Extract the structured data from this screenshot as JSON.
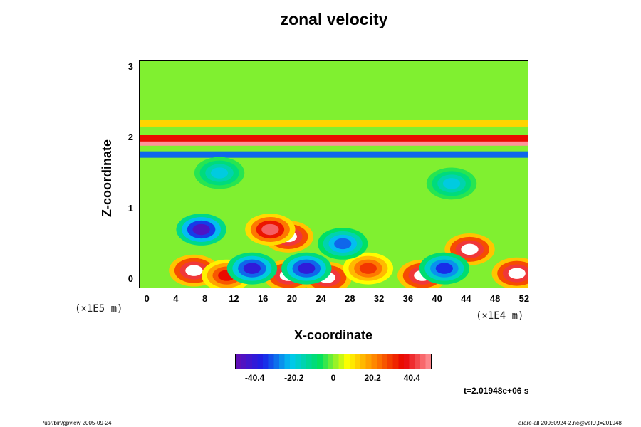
{
  "chart_data": {
    "type": "heatmap",
    "title": "zonal velocity",
    "xlabel": "X-coordinate",
    "ylabel": "Z-coordinate",
    "x_ticks": [
      "0",
      "4",
      "8",
      "12",
      "16",
      "20",
      "24",
      "28",
      "32",
      "36",
      "40",
      "44",
      "48",
      "52"
    ],
    "y_ticks": [
      "0",
      "1",
      "2",
      "3"
    ],
    "x_scale_label": "(×1E4 m)",
    "y_scale_label": "(×1E5 m)",
    "xlim": [
      -1,
      52.5
    ],
    "ylim": [
      -0.12,
      3.08
    ],
    "colorbar": {
      "ticks": [
        "-40.4",
        "-20.2",
        "0",
        "20.2",
        "40.4"
      ],
      "tick_values": [
        -40.4,
        -20.2,
        0,
        20.2,
        40.4
      ],
      "range": [
        -50.5,
        50.5
      ],
      "colors": [
        "#6a0cb0",
        "#1a20e8",
        "#00c8f0",
        "#00e060",
        "#ffff00",
        "#ff8000",
        "#e80000",
        "#ff9aa0"
      ]
    },
    "features": [
      {
        "x": 6.5,
        "z": 0.12,
        "value": 55
      },
      {
        "x": 11.0,
        "z": 0.05,
        "value": 35
      },
      {
        "x": 19.5,
        "z": 0.6,
        "value": 55
      },
      {
        "x": 17.0,
        "z": 0.7,
        "value": 45
      },
      {
        "x": 19.5,
        "z": 0.05,
        "value": 55
      },
      {
        "x": 24.8,
        "z": 0.02,
        "value": 55
      },
      {
        "x": 38.0,
        "z": 0.05,
        "value": 55
      },
      {
        "x": 44.5,
        "z": 0.42,
        "value": 55
      },
      {
        "x": 51.0,
        "z": 0.08,
        "value": 55
      },
      {
        "x": 30.5,
        "z": 0.15,
        "value": 30
      },
      {
        "x": 7.5,
        "z": 0.7,
        "value": -45
      },
      {
        "x": 14.5,
        "z": 0.15,
        "value": -40
      },
      {
        "x": 22.0,
        "z": 0.15,
        "value": -40
      },
      {
        "x": 41.0,
        "z": 0.15,
        "value": -35
      },
      {
        "x": 27.0,
        "z": 0.5,
        "value": -30
      },
      {
        "x": 10.0,
        "z": 1.5,
        "value": -20
      },
      {
        "x": 42.0,
        "z": 1.35,
        "value": -20
      }
    ],
    "bands": [
      {
        "z": 1.93,
        "value": 50
      },
      {
        "z": 1.99,
        "value": 35
      },
      {
        "z": 1.76,
        "value": -30
      },
      {
        "z": 2.2,
        "value": 12
      }
    ],
    "time": "t=2.01948e+06 s"
  },
  "footer": {
    "left": "/usr/bin/gpview 2005-09-24",
    "right": "arare-all 20050924-2.nc@velU,t=201948"
  }
}
